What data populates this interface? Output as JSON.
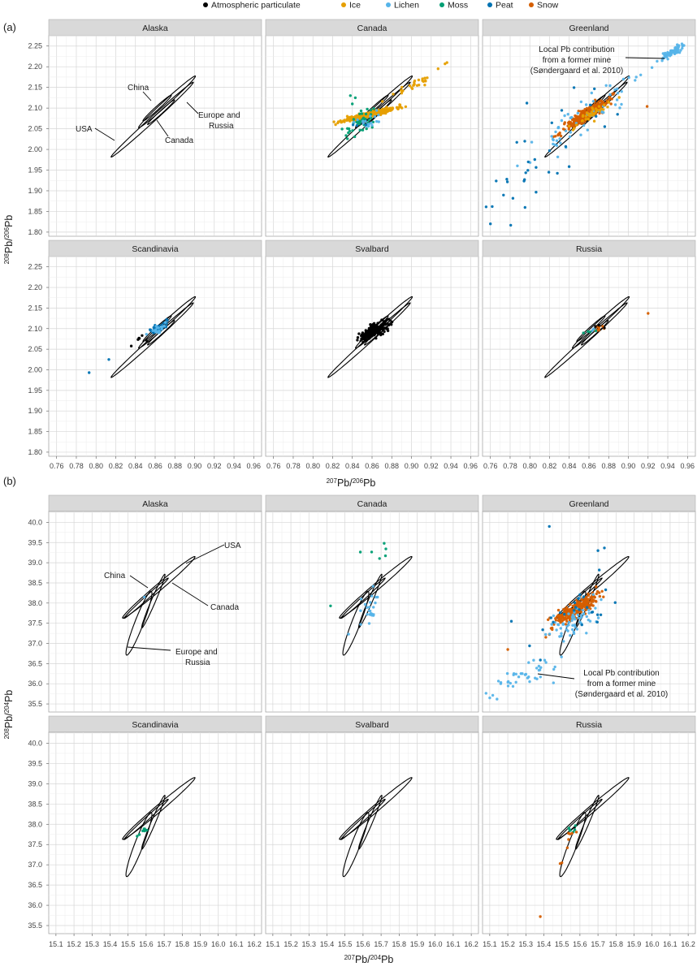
{
  "legend": {
    "items": [
      {
        "label": "Atmospheric particulate",
        "color": "#000000"
      },
      {
        "label": "Ice",
        "color": "#E69F00"
      },
      {
        "label": "Lichen",
        "color": "#56B4E9"
      },
      {
        "label": "Moss",
        "color": "#009E73"
      },
      {
        "label": "Peat",
        "color": "#0072B2"
      },
      {
        "label": "Snow",
        "color": "#D55E00"
      }
    ]
  },
  "colors": {
    "grid": "#d9d9d9",
    "strip": "#d9d9d9",
    "ellipse": "#000000"
  },
  "figure_a": {
    "letter": "(a)",
    "ylabel": "208Pb/206Pb",
    "xlabel": "207Pb/206Pb",
    "xticks": [
      "0.76",
      "0.78",
      "0.80",
      "0.82",
      "0.84",
      "0.86",
      "0.88",
      "0.90",
      "0.92",
      "0.94",
      "0.96"
    ],
    "yticks": [
      "1.80",
      "1.85",
      "1.90",
      "1.95",
      "2.00",
      "2.05",
      "2.10",
      "2.15",
      "2.20",
      "2.25"
    ]
  },
  "figure_b": {
    "letter": "(b)",
    "ylabel": "208Pb/204Pb",
    "xlabel": "207Pb/204Pb",
    "xticks": [
      "15.1",
      "15.2",
      "15.3",
      "15.4",
      "15.5",
      "15.6",
      "15.7",
      "15.8",
      "15.9",
      "16.0",
      "16.1",
      "16.2"
    ],
    "yticks": [
      "35.5",
      "36.0",
      "36.5",
      "37.0",
      "37.5",
      "38.0",
      "38.5",
      "39.0",
      "39.5",
      "40.0"
    ]
  },
  "annotations": {
    "a": {
      "usa": "USA",
      "china": "China",
      "canada": "Canada",
      "europe_line1": "Europe and",
      "europe_line2": "Russia",
      "mine_line1": "Local Pb contribution",
      "mine_line2": "from a former mine",
      "mine_line3": "(Søndergaard et al. 2010)"
    },
    "b": {
      "usa": "USA",
      "china": "China",
      "canada": "Canada",
      "europe_line1": "Europe and",
      "europe_line2": "Russia",
      "mine_line1": "Local Pb contribution",
      "mine_line2": "from a former mine",
      "mine_line3": "(Søndergaard et al. 2010)"
    }
  },
  "chart_data": [
    {
      "type": "scatter",
      "figure": "a",
      "xlabel": "207Pb/206Pb",
      "ylabel": "208Pb/206Pb",
      "xlim": [
        0.752,
        0.968
      ],
      "ylim": [
        1.79,
        2.275
      ],
      "grid": true,
      "legend_position": "top",
      "facets": [
        "Alaska",
        "Canada",
        "Greenland",
        "Scandinavia",
        "Svalbard",
        "Russia"
      ],
      "reference_ellipses": [
        {
          "name": "USA",
          "center": [
            0.857,
            2.072
          ],
          "a": 0.058,
          "b": 0.006,
          "angle_deg": 44
        },
        {
          "name": "China",
          "center": [
            0.862,
            2.1
          ],
          "a": 0.02,
          "b": 0.004,
          "angle_deg": 44
        },
        {
          "name": "Canada",
          "center": [
            0.866,
            2.09
          ],
          "a": 0.019,
          "b": 0.0035,
          "angle_deg": 44
        },
        {
          "name": "Europe and Russia",
          "center": [
            0.872,
            2.115
          ],
          "a": 0.04,
          "b": 0.006,
          "angle_deg": 44
        }
      ],
      "clusters": [
        {
          "facet": "Canada",
          "series": "Ice",
          "n": 420,
          "mean": [
            0.858,
            2.085
          ],
          "spread": [
            0.013,
            0.008
          ],
          "corr": 0.93,
          "seed": 11
        },
        {
          "facet": "Canada",
          "series": "Ice",
          "n": 26,
          "mean": [
            0.905,
            2.16
          ],
          "spread": [
            0.013,
            0.018
          ],
          "corr": 0.96,
          "seed": 12
        },
        {
          "facet": "Canada",
          "series": "Moss",
          "n": 40,
          "mean": [
            0.848,
            2.065
          ],
          "spread": [
            0.008,
            0.018
          ],
          "corr": 0.7,
          "seed": 13
        },
        {
          "facet": "Canada",
          "series": "Lichen",
          "n": 18,
          "mean": [
            0.862,
            2.075
          ],
          "spread": [
            0.007,
            0.012
          ],
          "corr": 0.6,
          "seed": 14
        },
        {
          "facet": "Canada",
          "series": "Peat",
          "n": 3,
          "mean": [
            0.85,
            2.06
          ],
          "spread": [
            0.005,
            0.01
          ],
          "corr": 0.5,
          "seed": 15
        },
        {
          "facet": "Greenland",
          "series": "Snow",
          "n": 340,
          "mean": [
            0.858,
            2.085
          ],
          "spread": [
            0.011,
            0.018
          ],
          "corr": 0.93,
          "seed": 21
        },
        {
          "facet": "Greenland",
          "series": "Lichen",
          "n": 70,
          "mean": [
            0.944,
            2.235
          ],
          "spread": [
            0.005,
            0.008
          ],
          "corr": 0.85,
          "seed": 22
        },
        {
          "facet": "Greenland",
          "series": "Lichen",
          "n": 60,
          "mean": [
            0.855,
            2.075
          ],
          "spread": [
            0.025,
            0.045
          ],
          "corr": 0.9,
          "seed": 23
        },
        {
          "facet": "Greenland",
          "series": "Ice",
          "n": 40,
          "mean": [
            0.86,
            2.08
          ],
          "spread": [
            0.01,
            0.015
          ],
          "corr": 0.85,
          "seed": 24
        },
        {
          "facet": "Greenland",
          "series": "Peat",
          "n": 30,
          "mean": [
            0.81,
            1.96
          ],
          "spread": [
            0.03,
            0.07
          ],
          "corr": 0.75,
          "seed": 25
        },
        {
          "facet": "Scandinavia",
          "series": "Peat",
          "n": 45,
          "mean": [
            0.862,
            2.1
          ],
          "spread": [
            0.006,
            0.008
          ],
          "corr": 0.8,
          "seed": 31
        },
        {
          "facet": "Scandinavia",
          "series": "Lichen",
          "n": 20,
          "mean": [
            0.865,
            2.1
          ],
          "spread": [
            0.005,
            0.007
          ],
          "corr": 0.7,
          "seed": 32
        },
        {
          "facet": "Scandinavia",
          "series": "Atmospheric particulate",
          "n": 6,
          "mean": [
            0.845,
            2.07
          ],
          "spread": [
            0.006,
            0.01
          ],
          "corr": 0.6,
          "seed": 33
        },
        {
          "facet": "Svalbard",
          "series": "Atmospheric particulate",
          "n": 230,
          "mean": [
            0.862,
            2.095
          ],
          "spread": [
            0.007,
            0.011
          ],
          "corr": 0.75,
          "seed": 41
        },
        {
          "facet": "Russia",
          "series": "Snow",
          "n": 9,
          "mean": [
            0.87,
            2.1
          ],
          "spread": [
            0.004,
            0.005
          ],
          "corr": 0.5,
          "seed": 51
        },
        {
          "facet": "Russia",
          "series": "Moss",
          "n": 4,
          "mean": [
            0.862,
            2.095
          ],
          "spread": [
            0.003,
            0.004
          ],
          "corr": 0.5,
          "seed": 52
        },
        {
          "facet": "Russia",
          "series": "Atmospheric particulate",
          "n": 3,
          "mean": [
            0.87,
            2.105
          ],
          "spread": [
            0.004,
            0.006
          ],
          "corr": 0.5,
          "seed": 53
        },
        {
          "facet": "Russia",
          "series": "Lichen",
          "n": 2,
          "mean": [
            0.862,
            2.095
          ],
          "spread": [
            0.002,
            0.003
          ],
          "corr": 0.5,
          "seed": 54
        }
      ],
      "points": [
        {
          "facet": "Greenland",
          "series": "Peat",
          "x": 0.76,
          "y": 1.82
        },
        {
          "facet": "Greenland",
          "series": "Peat",
          "x": 0.797,
          "y": 2.112
        },
        {
          "facet": "Greenland",
          "series": "Peat",
          "x": 0.889,
          "y": 2.085
        },
        {
          "facet": "Greenland",
          "series": "Peat",
          "x": 0.876,
          "y": 2.055
        },
        {
          "facet": "Greenland",
          "series": "Snow",
          "x": 0.919,
          "y": 2.104
        },
        {
          "facet": "Greenland",
          "series": "Lichen",
          "x": 0.895,
          "y": 2.17
        },
        {
          "facet": "Greenland",
          "series": "Lichen",
          "x": 0.908,
          "y": 2.175
        },
        {
          "facet": "Greenland",
          "series": "Lichen",
          "x": 0.924,
          "y": 2.198
        },
        {
          "facet": "Scandinavia",
          "series": "Peat",
          "x": 0.793,
          "y": 1.993
        },
        {
          "facet": "Scandinavia",
          "series": "Peat",
          "x": 0.813,
          "y": 2.025
        },
        {
          "facet": "Russia",
          "series": "Snow",
          "x": 0.92,
          "y": 2.137
        },
        {
          "facet": "Canada",
          "series": "Ice",
          "x": 0.934,
          "y": 2.207
        },
        {
          "facet": "Canada",
          "series": "Ice",
          "x": 0.936,
          "y": 2.21
        },
        {
          "facet": "Canada",
          "series": "Ice",
          "x": 0.927,
          "y": 2.195
        },
        {
          "facet": "Canada",
          "series": "Moss",
          "x": 0.838,
          "y": 2.13
        },
        {
          "facet": "Canada",
          "series": "Moss",
          "x": 0.843,
          "y": 2.125
        },
        {
          "facet": "Canada",
          "series": "Moss",
          "x": 0.84,
          "y": 2.11
        }
      ]
    },
    {
      "type": "scatter",
      "figure": "b",
      "xlabel": "207Pb/204Pb",
      "ylabel": "208Pb/204Pb",
      "xlim": [
        15.06,
        16.24
      ],
      "ylim": [
        35.3,
        40.27
      ],
      "grid": true,
      "legend_position": "top",
      "facets": [
        "Alaska",
        "Canada",
        "Greenland",
        "Scandinavia",
        "Svalbard",
        "Russia"
      ],
      "reference_ellipses": [
        {
          "name": "USA",
          "center": [
            15.67,
            38.39
          ],
          "a": 0.27,
          "b": 0.08,
          "angle_deg": 42
        },
        {
          "name": "China",
          "center": [
            15.6,
            38.12
          ],
          "a": 0.17,
          "b": 0.04,
          "angle_deg": 44
        },
        {
          "name": "Canada",
          "center": [
            15.64,
            38.05
          ],
          "a": 0.17,
          "b": 0.05,
          "angle_deg": 68
        },
        {
          "name": "Europe and Russia",
          "center": [
            15.56,
            37.5
          ],
          "a": 0.2,
          "b": 0.1,
          "angle_deg": 70
        }
      ],
      "clusters": [
        {
          "facet": "Canada",
          "series": "Lichen",
          "n": 24,
          "mean": [
            15.63,
            37.9
          ],
          "spread": [
            0.03,
            0.25
          ],
          "corr": 0.4,
          "seed": 61
        },
        {
          "facet": "Canada",
          "series": "Moss",
          "n": 6,
          "mean": [
            15.65,
            39.3
          ],
          "spread": [
            0.05,
            0.1
          ],
          "corr": 0.2,
          "seed": 62
        },
        {
          "facet": "Greenland",
          "series": "Snow",
          "n": 260,
          "mean": [
            15.58,
            37.85
          ],
          "spread": [
            0.07,
            0.22
          ],
          "corr": 0.88,
          "seed": 71
        },
        {
          "facet": "Greenland",
          "series": "Lichen",
          "n": 40,
          "mean": [
            15.28,
            36.15
          ],
          "spread": [
            0.12,
            0.25
          ],
          "corr": 0.85,
          "seed": 72
        },
        {
          "facet": "Greenland",
          "series": "Lichen",
          "n": 60,
          "mean": [
            15.58,
            37.6
          ],
          "spread": [
            0.08,
            0.35
          ],
          "corr": 0.8,
          "seed": 73
        },
        {
          "facet": "Greenland",
          "series": "Peat",
          "n": 25,
          "mean": [
            15.6,
            37.8
          ],
          "spread": [
            0.12,
            0.5
          ],
          "corr": 0.7,
          "seed": 74
        },
        {
          "facet": "Scandinavia",
          "series": "Moss",
          "n": 8,
          "mean": [
            15.58,
            37.82
          ],
          "spread": [
            0.015,
            0.06
          ],
          "corr": 0.5,
          "seed": 81
        },
        {
          "facet": "Russia",
          "series": "Moss",
          "n": 6,
          "mean": [
            15.57,
            37.85
          ],
          "spread": [
            0.02,
            0.06
          ],
          "corr": 0.5,
          "seed": 91
        },
        {
          "facet": "Russia",
          "series": "Snow",
          "n": 5,
          "mean": [
            15.56,
            37.78
          ],
          "spread": [
            0.02,
            0.06
          ],
          "corr": 0.5,
          "seed": 92
        }
      ],
      "points": [
        {
          "facet": "Alaska",
          "series": "Lichen",
          "x": 15.59,
          "y": 38.15
        },
        {
          "facet": "Canada",
          "series": "Moss",
          "x": 15.42,
          "y": 37.93
        },
        {
          "facet": "Canada",
          "series": "Lichen",
          "x": 15.52,
          "y": 37.23
        },
        {
          "facet": "Greenland",
          "series": "Peat",
          "x": 15.43,
          "y": 39.9
        },
        {
          "facet": "Greenland",
          "series": "Peat",
          "x": 15.7,
          "y": 39.3
        },
        {
          "facet": "Greenland",
          "series": "Peat",
          "x": 15.22,
          "y": 37.55
        },
        {
          "facet": "Greenland",
          "series": "Snow",
          "x": 15.2,
          "y": 36.85
        },
        {
          "facet": "Greenland",
          "series": "Lichen",
          "x": 15.1,
          "y": 35.65
        },
        {
          "facet": "Greenland",
          "series": "Lichen",
          "x": 15.14,
          "y": 35.62
        },
        {
          "facet": "Russia",
          "series": "Snow",
          "x": 15.38,
          "y": 35.72
        },
        {
          "facet": "Russia",
          "series": "Snow",
          "x": 15.5,
          "y": 37.05
        },
        {
          "facet": "Russia",
          "series": "Snow",
          "x": 15.49,
          "y": 37.03
        },
        {
          "facet": "Russia",
          "series": "Snow",
          "x": 15.53,
          "y": 37.42
        }
      ]
    }
  ]
}
